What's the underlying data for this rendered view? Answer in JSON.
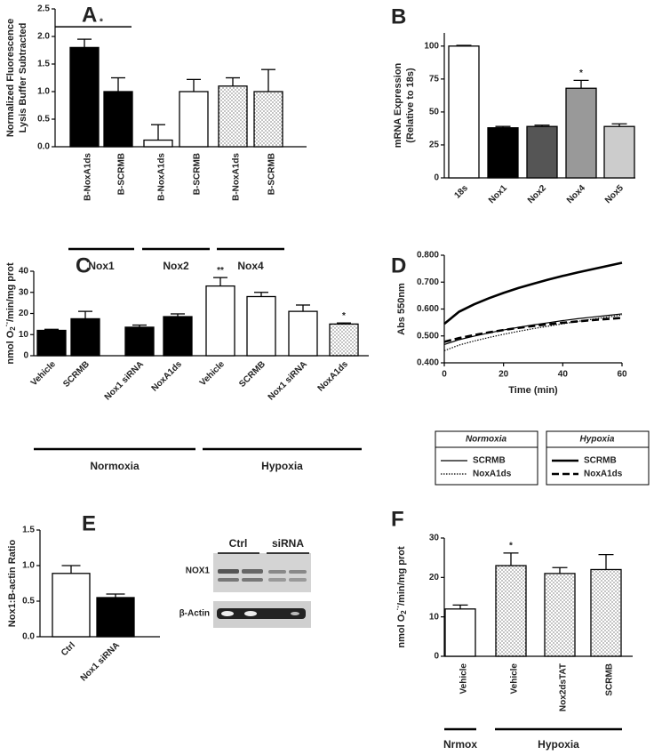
{
  "chart_data": [
    {
      "type": "bar",
      "panel": "A",
      "y_label": [
        "Normalized Fluorescence",
        "Lysis Buffer  Subtracted"
      ],
      "ylim": [
        0,
        2.5
      ],
      "yticks": [
        {
          "value": 0,
          "label": "0.0"
        },
        {
          "value": 0.5,
          "label": "0.5"
        },
        {
          "value": 1,
          "label": "1.0"
        },
        {
          "value": 1.5,
          "label": "1.5"
        },
        {
          "value": 2,
          "label": "2.0"
        },
        {
          "value": 2.5,
          "label": "2.5"
        }
      ],
      "groups": [
        {
          "name": "Nox1",
          "categories": [
            "B-NoxA1ds",
            "B-SCRMB"
          ],
          "values": [
            1.8,
            1.0
          ],
          "errors": [
            0.15,
            0.25
          ],
          "fills": [
            "#000000",
            "#000000"
          ]
        },
        {
          "name": "Nox2",
          "categories": [
            "B-NoxA1ds",
            "B-SCRMB"
          ],
          "values": [
            0.12,
            1.0
          ],
          "errors": [
            0.28,
            0.22
          ],
          "fills": [
            "#ffffff",
            "#ffffff"
          ]
        },
        {
          "name": "Nox4",
          "categories": [
            "B-NoxA1ds",
            "B-SCRMB"
          ],
          "values": [
            1.1,
            1.0
          ],
          "errors": [
            0.15,
            0.4
          ],
          "fills": [
            "dotted",
            "dotted"
          ]
        }
      ],
      "annotations": [
        "*"
      ]
    },
    {
      "type": "bar",
      "panel": "B",
      "y_label": [
        "mRNA Expression",
        "(Relative to 18s)"
      ],
      "ylim": [
        0,
        110
      ],
      "yticks": [
        0,
        25,
        50,
        75,
        100
      ],
      "groups": [
        {
          "categories": [
            "18s",
            "Nox1",
            "Nox2",
            "Nox4",
            "Nox5"
          ],
          "values": [
            100,
            38,
            39,
            68,
            39
          ],
          "errors": [
            0.5,
            1,
            1,
            6,
            2
          ],
          "fills": [
            "#ffffff",
            "#000000",
            "#555555",
            "#999999",
            "#cccccc"
          ]
        }
      ],
      "annotations": [
        "*"
      ]
    },
    {
      "type": "bar",
      "panel": "C",
      "y_label": {
        "text": "nmol O",
        "sub": "2",
        "sup": "·-",
        "rest": "/min/mg prot"
      },
      "ylim": [
        0,
        40
      ],
      "yticks": [
        0,
        10,
        20,
        30,
        40
      ],
      "groups": [
        {
          "name": "Normoxia",
          "categories": [
            "Vehicle",
            "SCRMB",
            "Nox1 siRNA",
            "NoxA1ds"
          ],
          "values": [
            12,
            17.5,
            13.5,
            18.5
          ],
          "errors": [
            0.5,
            3.5,
            1,
            1.3
          ],
          "fills": [
            "#000000",
            "#000000",
            "#000000",
            "#000000"
          ]
        },
        {
          "name": "Hypoxia",
          "categories": [
            "Vehicle",
            "SCRMB",
            "Nox1 siRNA",
            "NoxA1ds"
          ],
          "values": [
            33,
            28,
            21,
            15
          ],
          "errors": [
            4,
            2,
            3,
            0.5
          ],
          "fills": [
            "#ffffff",
            "#ffffff",
            "#ffffff",
            "dotted"
          ]
        }
      ],
      "annotations": [
        "**",
        "*"
      ]
    },
    {
      "type": "line",
      "panel": "D",
      "x_label": "Time (min)",
      "y_label": [
        "Abs 550nm"
      ],
      "x": [
        0,
        5,
        10,
        15,
        20,
        25,
        30,
        35,
        40,
        45,
        50,
        55,
        60
      ],
      "xlim": [
        0,
        60
      ],
      "xticks": [
        0,
        20,
        40,
        60
      ],
      "ylim": [
        0.4,
        0.8
      ],
      "yticks": [
        {
          "value": 0.4,
          "label": "0.400"
        },
        {
          "value": 0.5,
          "label": "0.500"
        },
        {
          "value": 0.6,
          "label": "0.600"
        },
        {
          "value": 0.7,
          "label": "0.700"
        },
        {
          "value": 0.8,
          "label": "0.800"
        }
      ],
      "series_groups": [
        {
          "name": "Normoxia",
          "series": [
            {
              "name": "SCRMB",
              "color": "#000000",
              "style": "solid-thin",
              "values": [
                0.468,
                0.486,
                0.499,
                0.511,
                0.522,
                0.532,
                0.541,
                0.549,
                0.557,
                0.564,
                0.57,
                0.576,
                0.582
              ]
            },
            {
              "name": "NoxA1ds",
              "color": "#000000",
              "style": "dotted-thin",
              "values": [
                0.445,
                0.466,
                0.481,
                0.494,
                0.506,
                0.517,
                0.527,
                0.536,
                0.545,
                0.554,
                0.562,
                0.57,
                0.578
              ]
            }
          ]
        },
        {
          "name": "Hypoxia",
          "series": [
            {
              "name": "SCRMB",
              "color": "#000000",
              "style": "solid-thick",
              "values": [
                0.545,
                0.59,
                0.617,
                0.64,
                0.66,
                0.678,
                0.694,
                0.709,
                0.723,
                0.736,
                0.748,
                0.76,
                0.772
              ]
            },
            {
              "name": "NoxA1ds",
              "color": "#000000",
              "style": "dashed-thick",
              "values": [
                0.478,
                0.492,
                0.503,
                0.513,
                0.522,
                0.53,
                0.537,
                0.543,
                0.549,
                0.554,
                0.559,
                0.563,
                0.567
              ]
            }
          ]
        }
      ]
    },
    {
      "type": "bar",
      "panel": "E",
      "y_label": [
        "Nox1:B-actin Ratio"
      ],
      "ylim": [
        0,
        1.5
      ],
      "yticks": [
        {
          "value": 0,
          "label": "0.0"
        },
        {
          "value": 0.5,
          "label": "0.5"
        },
        {
          "value": 1,
          "label": "1.0"
        },
        {
          "value": 1.5,
          "label": "1.5"
        }
      ],
      "groups": [
        {
          "categories": [
            "Ctrl",
            "Nox1 siRNA"
          ],
          "values": [
            0.89,
            0.55
          ],
          "errors": [
            0.11,
            0.05
          ],
          "fills": [
            "#ffffff",
            "#000000"
          ]
        }
      ],
      "blot": {
        "lanes": [
          "Ctrl",
          "siRNA"
        ],
        "bands": [
          "NOX1",
          "β-Actin"
        ]
      }
    },
    {
      "type": "bar",
      "panel": "F",
      "y_label": {
        "text": "nmol O",
        "sub": "2",
        "sup": "·-",
        "rest": "/min/mg prot"
      },
      "ylim": [
        0,
        30
      ],
      "yticks": [
        0,
        10,
        20,
        30
      ],
      "groups": [
        {
          "name": "Nrmox",
          "categories": [
            "Vehicle"
          ],
          "values": [
            12
          ],
          "errors": [
            1
          ],
          "fills": [
            "#ffffff"
          ]
        },
        {
          "name": "Hypoxia",
          "categories": [
            "Vehicle",
            "Nox2dsTAT",
            "SCRMB"
          ],
          "values": [
            23,
            21,
            22
          ],
          "errors": [
            3.2,
            1.5,
            3.8
          ],
          "fills": [
            "dotted",
            "dotted",
            "dotted"
          ]
        }
      ],
      "annotations": [
        "*"
      ]
    }
  ]
}
